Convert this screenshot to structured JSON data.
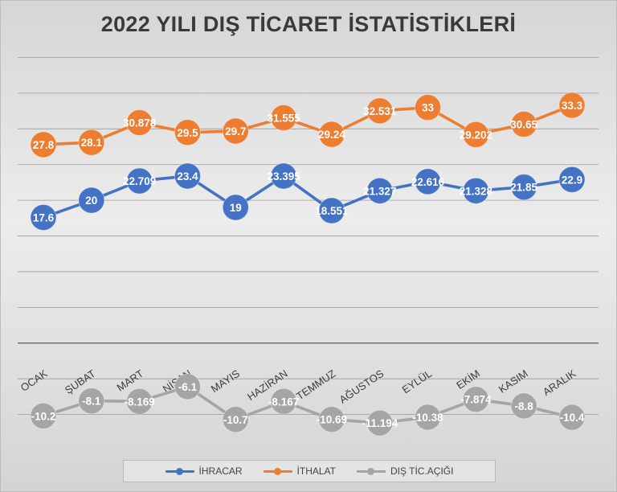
{
  "chart_data": {
    "type": "line",
    "title": "2022 YILI DIŞ TİCARET İSTATİSTİKLERİ",
    "categories": [
      "OCAK",
      "ŞUBAT",
      "MART",
      "NİSAN",
      "MAYIS",
      "HAZİRAN",
      "TEMMUZ",
      "AĞUSTOS",
      "EYLÜL",
      "EKİM",
      "KASIM",
      "ARALIK"
    ],
    "series": [
      {
        "name": "İHRACAR",
        "color": "#4472C4",
        "values": [
          17.6,
          20,
          22.709,
          23.4,
          19,
          23.395,
          18.551,
          21.327,
          22.616,
          21.328,
          21.85,
          22.9
        ],
        "labels": [
          "17.6",
          "20",
          "22.709",
          "23.4",
          "19",
          "23.395",
          "18.551",
          "21.327",
          "22.616",
          "21.328",
          "21.85",
          "22.9"
        ]
      },
      {
        "name": "İTHALAT",
        "color": "#ED7D31",
        "values": [
          27.8,
          28.1,
          30.878,
          29.5,
          29.7,
          31.555,
          29.24,
          32.531,
          33,
          29.202,
          30.65,
          33.3
        ],
        "labels": [
          "27.8",
          "28.1",
          "30.878",
          "29.5",
          "29.7",
          "31.555",
          "29.24",
          "32.531",
          "33",
          "29.202",
          "30.65",
          "33.3"
        ]
      },
      {
        "name": "DIŞ TİC.AÇIĞI",
        "color": "#A5A5A5",
        "values": [
          -10.2,
          -8.1,
          -8.169,
          -6.1,
          -10.7,
          -8.167,
          -10.69,
          -11.194,
          -10.38,
          -7.874,
          -8.8,
          -10.4
        ],
        "labels": [
          "-10.2",
          "-8.1",
          "-8.169",
          "-6.1",
          "-10.7",
          "-8.167",
          "-10.69",
          "-11.194",
          "-10.38",
          "-7.874",
          "-8.8",
          "-10.4"
        ]
      }
    ],
    "ylim": [
      -15,
      40
    ],
    "grid": true,
    "legend_position": "bottom"
  }
}
